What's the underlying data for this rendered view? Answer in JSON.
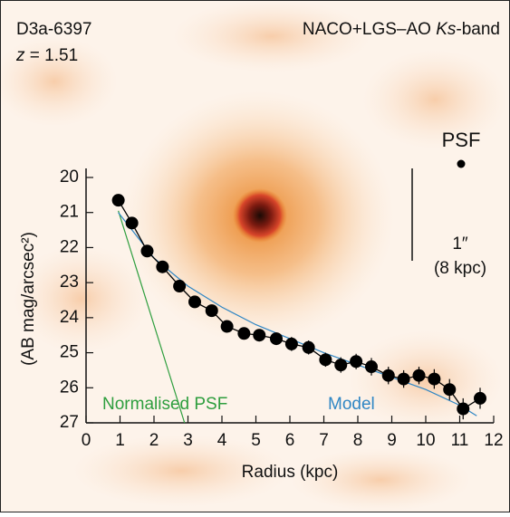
{
  "chart_data": {
    "type": "line",
    "object": "D3a-6397",
    "redshift_symbol": "z",
    "redshift_value": "= 1.51",
    "instrument": "NACO+LGS–AO",
    "band": "Ks",
    "band_suffix": "-band",
    "psf_label": "PSF",
    "scale_label": "1″",
    "scale_label_kpc": "(8 kpc)",
    "x_label": "Radius (kpc)",
    "y_label": "(AB mag/arcsec²)",
    "xlim": [
      0,
      12
    ],
    "ylim": [
      20,
      27
    ],
    "y_inverted": true,
    "xticks": [
      0,
      1,
      2,
      3,
      4,
      5,
      6,
      7,
      8,
      9,
      10,
      11,
      12
    ],
    "yticks": [
      20,
      21,
      22,
      23,
      24,
      25,
      26,
      27
    ],
    "series": [
      {
        "color": "#000000",
        "x": [
          0.95,
          1.35,
          1.8,
          2.25,
          2.75,
          3.2,
          3.7,
          4.15,
          4.65,
          5.1,
          5.6,
          6.05,
          6.55,
          7.05,
          7.5,
          7.95,
          8.4,
          8.9,
          9.35,
          9.8,
          10.25,
          10.7,
          11.1,
          11.6
        ],
        "values": [
          20.65,
          21.3,
          22.1,
          22.55,
          23.1,
          23.55,
          23.8,
          24.25,
          24.45,
          24.5,
          24.6,
          24.75,
          24.85,
          25.2,
          25.35,
          25.25,
          25.4,
          25.65,
          25.75,
          25.65,
          25.75,
          26.05,
          26.6,
          26.3
        ],
        "errors": [
          0.05,
          0.05,
          0.05,
          0.05,
          0.05,
          0.08,
          0.1,
          0.12,
          0.15,
          0.15,
          0.18,
          0.2,
          0.2,
          0.2,
          0.22,
          0.22,
          0.25,
          0.25,
          0.25,
          0.25,
          0.28,
          0.3,
          0.3,
          0.3
        ]
      },
      {
        "name": "Model",
        "color": "#2f86c4",
        "x": [
          0.95,
          2,
          3,
          4,
          5,
          6,
          7,
          8,
          9,
          10,
          11,
          11.5
        ],
        "values": [
          21.0,
          22.3,
          23.1,
          23.7,
          24.2,
          24.6,
          25.0,
          25.35,
          25.7,
          26.05,
          26.5,
          26.8
        ]
      },
      {
        "name": "Normalised PSF",
        "color": "#2e9e3e",
        "x": [
          0.95,
          2.9
        ],
        "values": [
          20.95,
          27
        ]
      }
    ]
  }
}
